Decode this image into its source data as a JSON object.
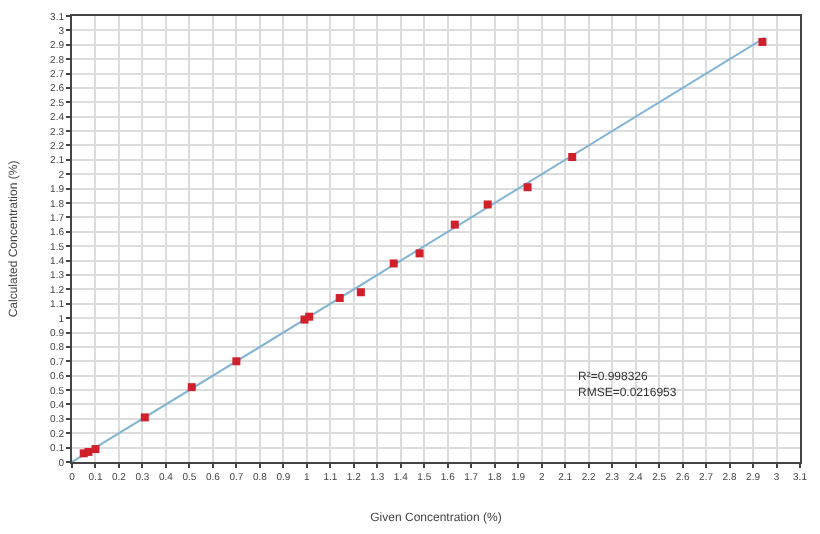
{
  "chart_data": {
    "type": "scatter",
    "xlabel": "Given Concentration (%)",
    "ylabel": "Calculated Concentration (%)",
    "annotations": [
      "R²=0.998326",
      "RMSE=0.0216953"
    ],
    "xlim": [
      0,
      3.1
    ],
    "ylim": [
      0,
      3.1
    ],
    "xticks": [
      0,
      0.1,
      0.2,
      0.3,
      0.4,
      0.5,
      0.6,
      0.7,
      0.8,
      0.9,
      1,
      1.1,
      1.2,
      1.3,
      1.4,
      1.5,
      1.6,
      1.7,
      1.8,
      1.9,
      2,
      2.1,
      2.2,
      2.3,
      2.4,
      2.5,
      2.6,
      2.7,
      2.8,
      2.9,
      3,
      3.1
    ],
    "yticks": [
      0,
      0.1,
      0.2,
      0.3,
      0.4,
      0.5,
      0.6,
      0.7,
      0.8,
      0.9,
      1,
      1.1,
      1.2,
      1.3,
      1.4,
      1.5,
      1.6,
      1.7,
      1.8,
      1.9,
      2,
      2.1,
      2.2,
      2.3,
      2.4,
      2.5,
      2.6,
      2.7,
      2.8,
      2.9,
      3,
      3.1
    ],
    "grid": true,
    "marker": "square",
    "series": [
      {
        "type": "line",
        "color": "#80b4d4",
        "x": [
          0,
          2.95
        ],
        "values": [
          0,
          2.95
        ],
        "marker": "none"
      },
      {
        "color": "#d0202c",
        "x": [
          0.05,
          0.07,
          0.1,
          0.31,
          0.51,
          0.7,
          0.99,
          1.01,
          1.14,
          1.23,
          1.37,
          1.48,
          1.63,
          1.77,
          1.94,
          2.13,
          2.94
        ],
        "values": [
          0.06,
          0.07,
          0.09,
          0.31,
          0.52,
          0.7,
          0.99,
          1.01,
          1.14,
          1.18,
          1.38,
          1.45,
          1.65,
          1.79,
          1.91,
          2.12,
          2.92
        ]
      }
    ]
  }
}
